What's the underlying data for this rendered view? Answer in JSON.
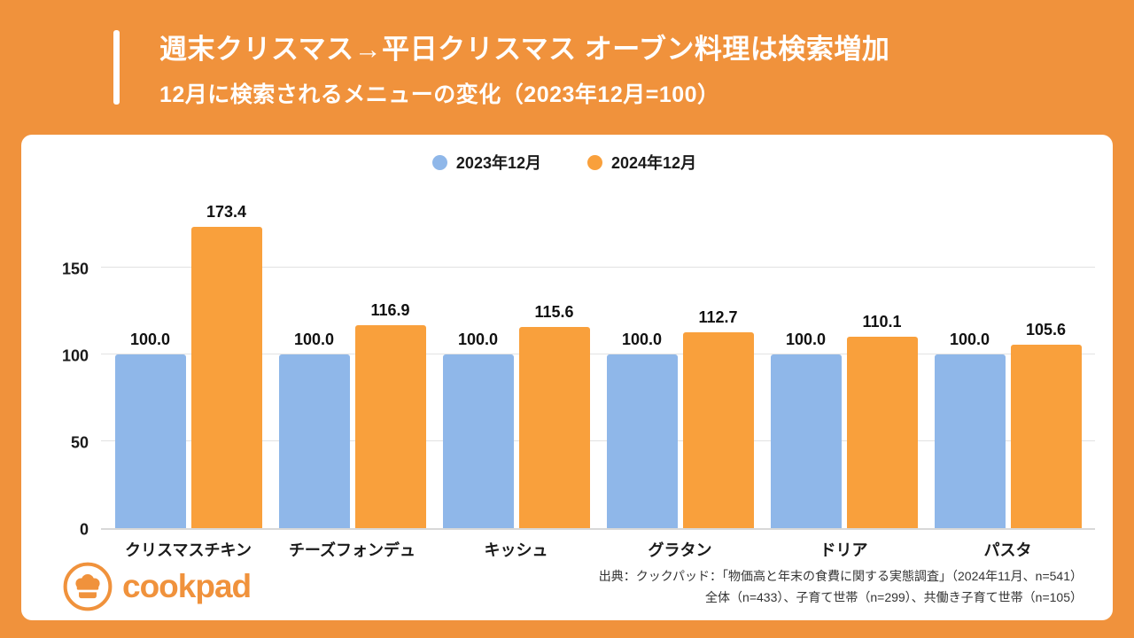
{
  "header": {
    "title": "週末クリスマス→平日クリスマス オーブン料理は検索増加",
    "subtitle": "12月に検索されるメニューの変化（2023年12月=100）"
  },
  "chart_data": {
    "type": "bar",
    "title": "12月に検索されるメニューの変化（2023年12月=100）",
    "categories": [
      "クリスマスチキン",
      "チーズフォンデュ",
      "キッシュ",
      "グラタン",
      "ドリア",
      "パスタ"
    ],
    "series": [
      {
        "name": "2023年12月",
        "color": "#8FB7E9",
        "values": [
          100.0,
          100.0,
          100.0,
          100.0,
          100.0,
          100.0
        ]
      },
      {
        "name": "2024年12月",
        "color": "#F9A03C",
        "values": [
          173.4,
          116.9,
          115.6,
          112.7,
          110.1,
          105.6
        ]
      }
    ],
    "xlabel": "",
    "ylabel": "",
    "ylim": [
      0,
      200
    ],
    "yticks": [
      0,
      50,
      100,
      150
    ],
    "grid": true,
    "legend_position": "top-center",
    "value_label_decimals": 1
  },
  "footer": {
    "logo_text": "cookpad",
    "source_line1": "出典：クックパッド：「物価高と年末の食費に関する実態調査」（2024年11月、n=541）",
    "source_line2": "全体（n=433）、子育て世帯（n=299）、共働き子育て世帯（n=105）"
  },
  "colors": {
    "background": "#F0923C",
    "card": "#ffffff",
    "series_2023": "#8FB7E9",
    "series_2024": "#F9A03C",
    "title_text": "#ffffff",
    "body_text": "#1a1a1a"
  }
}
